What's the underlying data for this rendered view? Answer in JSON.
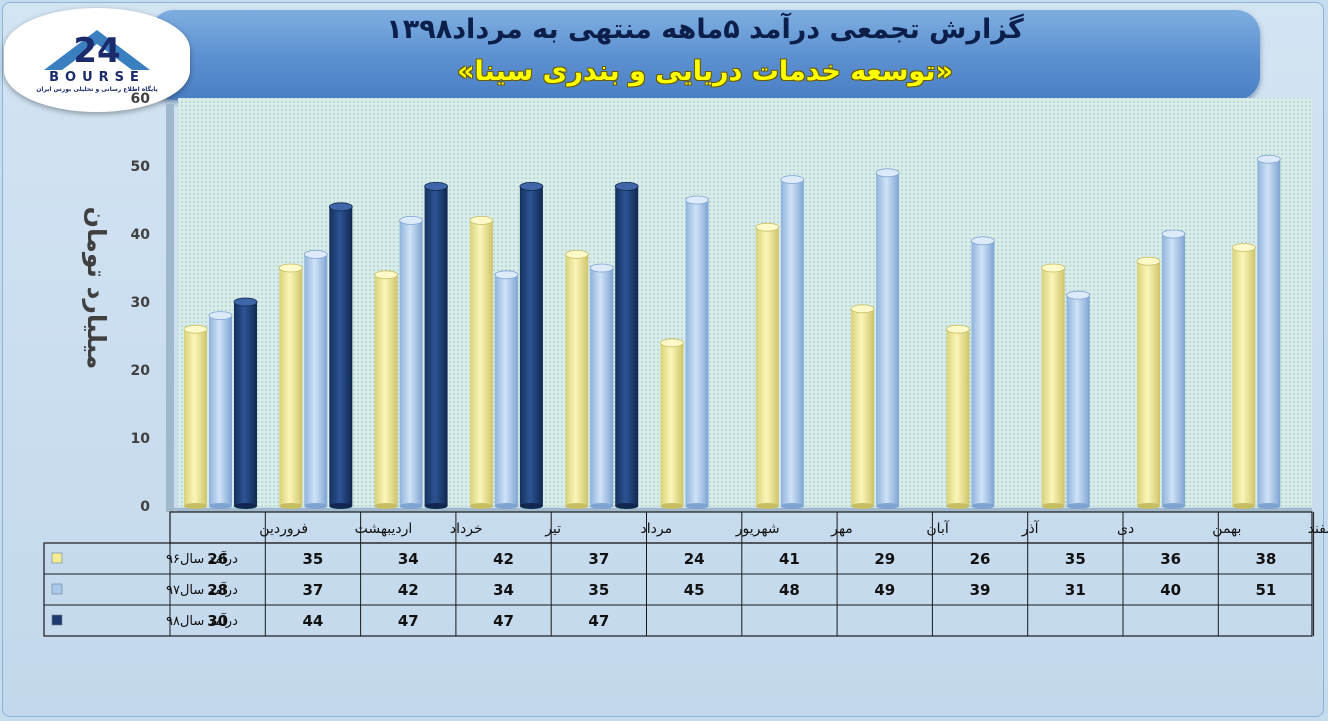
{
  "header": {
    "title": "گزارش تجمعی درآمد ۵ماهه منتهی به مرداد۱۳۹۸",
    "subtitle": "«توسعه خدمات دریایی و بندری سینا»"
  },
  "logo": {
    "text": "BOURSE",
    "caption": "پایگاه اطلاع رسانی و تحلیلی بورس ایران",
    "icon": "bourse-24-logo-icon"
  },
  "colors": {
    "series_96": "#f2ec94",
    "series_97": "#a9c8ea",
    "series_98": "#1c3a6e",
    "plot_background": "#d8ecea",
    "banner": "#5b8fd0"
  },
  "chart_data": {
    "type": "bar",
    "categories": [
      "فروردین",
      "اردیبهشت",
      "خرداد",
      "تیر",
      "مرداد",
      "شهریور",
      "مهر",
      "آبان",
      "آذر",
      "دی",
      "بهمن",
      "اسفند"
    ],
    "series": [
      {
        "name": "درآمد سال۹۶",
        "values": [
          26,
          35,
          34,
          42,
          37,
          24,
          41,
          29,
          26,
          35,
          36,
          38
        ]
      },
      {
        "name": "درآمد سال۹۷",
        "values": [
          28,
          37,
          42,
          34,
          35,
          45,
          48,
          49,
          39,
          31,
          40,
          51
        ]
      },
      {
        "name": "درآمد سال۹۸",
        "values": [
          30,
          44,
          47,
          47,
          47,
          null,
          null,
          null,
          null,
          null,
          null,
          null
        ]
      }
    ],
    "ylabel": "میلیارد تومان",
    "ylim": [
      0,
      60
    ],
    "yticks": [
      0,
      10,
      20,
      30,
      40,
      50,
      60
    ],
    "grid": false,
    "legend": "data-table-bottom"
  }
}
